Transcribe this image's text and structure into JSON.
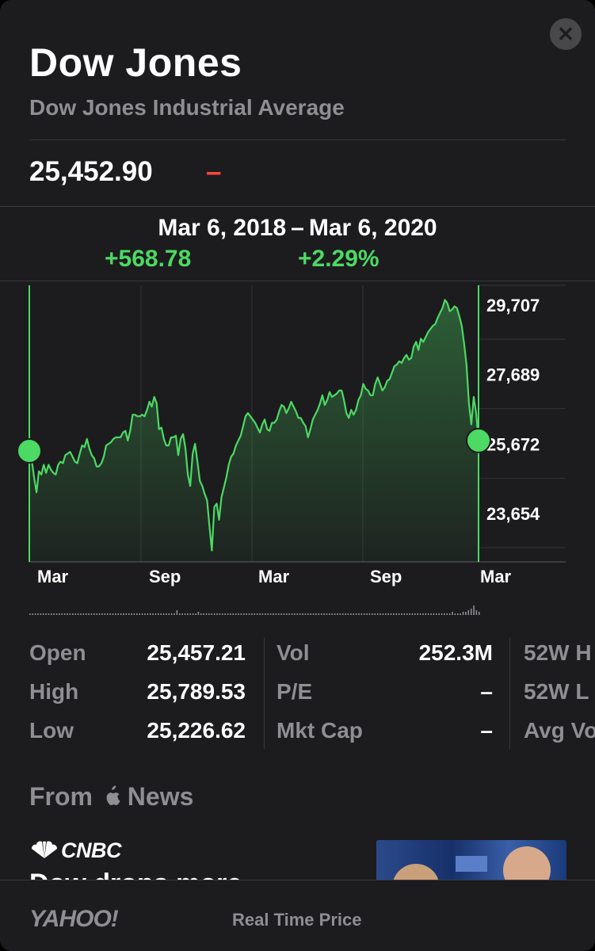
{
  "header": {
    "title": "Dow Jones",
    "subtitle": "Dow Jones Industrial Average",
    "close_icon": "close-icon"
  },
  "quote": {
    "price": "25,452.90",
    "change": "–",
    "change_color": "#ff453a"
  },
  "range": {
    "start": "Mar 6, 2018",
    "separator": "–",
    "end": "Mar 6, 2020",
    "points_change": "+568.78",
    "percent_change": "+2.29%",
    "positive_color": "#4cd964"
  },
  "chart_data": {
    "type": "area",
    "x_tick_labels": [
      "Mar",
      "Sep",
      "Mar",
      "Sep",
      "Mar"
    ],
    "y_tick_labels": [
      "29,707",
      "27,689",
      "25,672",
      "23,654"
    ],
    "ylim": [
      21700,
      30250
    ],
    "y_scale_pairs": [
      [
        29707,
        0
      ],
      [
        23654,
        1
      ]
    ],
    "line_color": "#4cd964",
    "x_range": [
      "Mar 6, 2018",
      "Mar 6, 2020"
    ],
    "values": [
      25200,
      24850,
      24300,
      23850,
      24500,
      24400,
      24700,
      24450,
      24700,
      24550,
      24450,
      24400,
      24700,
      24800,
      24750,
      25000,
      25050,
      25100,
      24950,
      24800,
      24750,
      25050,
      25300,
      25250,
      25500,
      25200,
      25000,
      24900,
      24650,
      24650,
      24750,
      24950,
      25300,
      25350,
      25400,
      25500,
      25550,
      25550,
      25550,
      25700,
      25750,
      25450,
      25750,
      26250,
      26250,
      26200,
      26200,
      26250,
      26200,
      26400,
      26650,
      26500,
      26800,
      26600,
      25800,
      25850,
      25500,
      25300,
      25300,
      25550,
      25550,
      25600,
      25000,
      25500,
      25650,
      25200,
      24400,
      24050,
      25050,
      25350,
      24800,
      24200,
      24050,
      23800,
      23600,
      22800,
      22050,
      23400,
      23500,
      23000,
      23700,
      24000,
      24300,
      24700,
      24950,
      25050,
      25300,
      25450,
      25600,
      25900,
      26200,
      26300,
      26200,
      26100,
      26000,
      25850,
      25700,
      25950,
      26100,
      25800,
      25750,
      26000,
      26000,
      26100,
      26350,
      26550,
      26500,
      26300,
      26450,
      26650,
      26500,
      26350,
      26150,
      26150,
      26000,
      25900,
      25550,
      25800,
      26100,
      26250,
      26400,
      26600,
      26850,
      26550,
      26700,
      26950,
      26800,
      26850,
      26900,
      27000,
      27000,
      26700,
      26300,
      26150,
      26400,
      26250,
      26400,
      26700,
      26850,
      27200,
      27050,
      27000,
      26850,
      26850,
      27200,
      27400,
      27200,
      27000,
      27100,
      27300,
      27350,
      27550,
      27750,
      27800,
      27900,
      27850,
      28000,
      28100,
      27950,
      28000,
      28350,
      28500,
      28250,
      28600,
      28500,
      28650,
      28800,
      28900,
      29000,
      29050,
      29250,
      29400,
      29550,
      29800,
      29700,
      29450,
      29500,
      29600,
      29550,
      29300,
      29000,
      28450,
      27800,
      26600,
      25950,
      26800,
      26300,
      25450
    ],
    "volume_bars": [
      1,
      1,
      1,
      1,
      1,
      1,
      1,
      1,
      1,
      1,
      1,
      1,
      1,
      1,
      1,
      1,
      1,
      1,
      1,
      1,
      1,
      1,
      1,
      1,
      1,
      1,
      1,
      1,
      1,
      1,
      1,
      1,
      1,
      1,
      1,
      1,
      1,
      1,
      1,
      1,
      1,
      1,
      1,
      1,
      1,
      1,
      1,
      1,
      1,
      1,
      1,
      1,
      1,
      1,
      1,
      3,
      1,
      1,
      1,
      1,
      1,
      1,
      1,
      2,
      1,
      1,
      1,
      1,
      1,
      1,
      1,
      1,
      1,
      1,
      1,
      1,
      1,
      1,
      1,
      1,
      1,
      1,
      1,
      1,
      1,
      1,
      1,
      1,
      1,
      1,
      1,
      1,
      1,
      1,
      1,
      1,
      1,
      1,
      1,
      1,
      1,
      1,
      1,
      1,
      1,
      1,
      1,
      1,
      1,
      1,
      1,
      1,
      1,
      1,
      1,
      1,
      1,
      1,
      1,
      1,
      1,
      1,
      1,
      1,
      1,
      1,
      1,
      1,
      1,
      1,
      1,
      1,
      1,
      1,
      1,
      1,
      1,
      1,
      1,
      1,
      1,
      1,
      1,
      1,
      1,
      1,
      1,
      1,
      1,
      1,
      1,
      1,
      1,
      1,
      1,
      1,
      1,
      1,
      2,
      1,
      1,
      1,
      2,
      2,
      3,
      4,
      6,
      3,
      2
    ]
  },
  "stats": {
    "col1": [
      {
        "label": "Open",
        "value": "25,457.21"
      },
      {
        "label": "High",
        "value": "25,789.53"
      },
      {
        "label": "Low",
        "value": "25,226.62"
      }
    ],
    "col2": [
      {
        "label": "Vol",
        "value": "252.3M"
      },
      {
        "label": "P/E",
        "value": "–"
      },
      {
        "label": "Mkt Cap",
        "value": "–"
      }
    ],
    "col3": [
      {
        "label": "52W H"
      },
      {
        "label": "52W L"
      },
      {
        "label": "Avg Vo"
      }
    ]
  },
  "news": {
    "heading_prefix": "From",
    "heading_suffix": "News",
    "apple_icon": "apple-icon",
    "source": "CNBC",
    "source_icon": "peacock-icon",
    "headline": "Dow drops more"
  },
  "footer": {
    "provider": "YAHOO!",
    "price_type": "Real Time Price"
  }
}
